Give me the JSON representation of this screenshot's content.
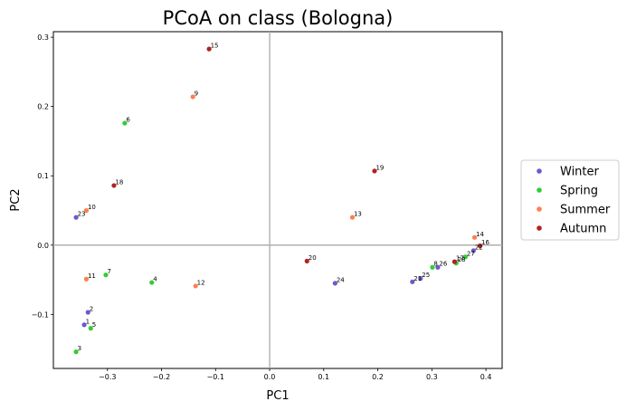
{
  "chart_data": {
    "type": "scatter",
    "title": "PCoA on class (Bologna)",
    "xlabel": "PC1",
    "ylabel": "PC2",
    "xlim": [
      -0.4,
      0.43
    ],
    "ylim": [
      -0.178,
      0.308
    ],
    "xticks": [
      -0.3,
      -0.2,
      -0.1,
      0.0,
      0.1,
      0.2,
      0.3,
      0.4
    ],
    "xtick_labels": [
      "−0.3",
      "−0.2",
      "−0.1",
      "0.0",
      "0.1",
      "0.2",
      "0.3",
      "0.4"
    ],
    "yticks": [
      -0.1,
      0.0,
      0.1,
      0.2,
      0.3
    ],
    "ytick_labels": [
      "−0.1",
      "0.0",
      "0.1",
      "0.2",
      "0.3"
    ],
    "reference_lines": {
      "x": 0,
      "y": 0,
      "color": "#b0b0b0"
    },
    "legend_position": "right",
    "series": [
      {
        "name": "Winter",
        "color": "#6a5acd",
        "points": [
          {
            "id": "1",
            "x": -0.343,
            "y": -0.115
          },
          {
            "id": "2",
            "x": -0.336,
            "y": -0.097
          },
          {
            "id": "23",
            "x": -0.358,
            "y": 0.04
          },
          {
            "id": "24",
            "x": 0.121,
            "y": -0.055
          },
          {
            "id": "21",
            "x": 0.264,
            "y": -0.053
          },
          {
            "id": "25",
            "x": 0.279,
            "y": -0.048
          },
          {
            "id": "26",
            "x": 0.311,
            "y": -0.032
          },
          {
            "id": "22",
            "x": 0.377,
            "y": -0.008
          }
        ]
      },
      {
        "name": "Spring",
        "color": "#32cd32",
        "points": [
          {
            "id": "3",
            "x": -0.358,
            "y": -0.154
          },
          {
            "id": "5",
            "x": -0.331,
            "y": -0.12
          },
          {
            "id": "7",
            "x": -0.303,
            "y": -0.043
          },
          {
            "id": "4",
            "x": -0.218,
            "y": -0.054
          },
          {
            "id": "6",
            "x": -0.268,
            "y": 0.176
          },
          {
            "id": "8",
            "x": 0.301,
            "y": -0.032
          },
          {
            "id": "28",
            "x": 0.345,
            "y": -0.026
          },
          {
            "id": "27",
            "x": 0.362,
            "y": -0.017
          }
        ]
      },
      {
        "name": "Summer",
        "color": "#ff7f50",
        "points": [
          {
            "id": "10",
            "x": -0.339,
            "y": 0.05
          },
          {
            "id": "11",
            "x": -0.339,
            "y": -0.049
          },
          {
            "id": "12",
            "x": -0.137,
            "y": -0.059
          },
          {
            "id": "9",
            "x": -0.142,
            "y": 0.214
          },
          {
            "id": "13",
            "x": 0.153,
            "y": 0.04
          },
          {
            "id": "14",
            "x": 0.379,
            "y": 0.011
          }
        ]
      },
      {
        "name": "Autumn",
        "color": "#b22222",
        "points": [
          {
            "id": "18",
            "x": -0.288,
            "y": 0.086
          },
          {
            "id": "15",
            "x": -0.112,
            "y": 0.283
          },
          {
            "id": "19",
            "x": 0.194,
            "y": 0.107
          },
          {
            "id": "20",
            "x": 0.069,
            "y": -0.023
          },
          {
            "id": "17",
            "x": 0.342,
            "y": -0.024
          },
          {
            "id": "16",
            "x": 0.389,
            "y": -0.001
          }
        ]
      }
    ]
  }
}
